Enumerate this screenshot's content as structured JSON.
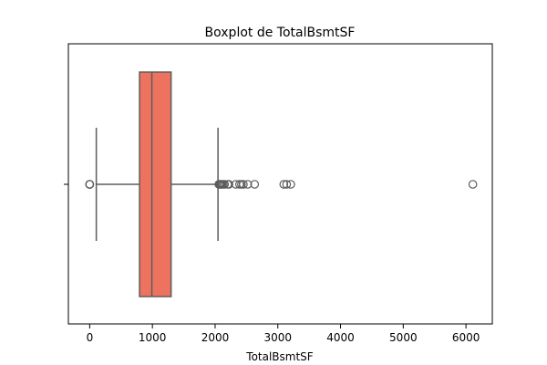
{
  "chart_data": {
    "type": "boxplot",
    "title": "Boxplot de TotalBsmtSF",
    "xlabel": "TotalBsmtSF",
    "ylabel": "",
    "orientation": "horizontal",
    "xlim": [
      -340,
      6420
    ],
    "xticks": [
      0,
      1000,
      2000,
      3000,
      4000,
      5000,
      6000
    ],
    "grid": false,
    "box": {
      "whisker_low": 105,
      "q1": 795,
      "median": 991,
      "q3": 1298,
      "whisker_high": 2046
    },
    "outliers": [
      0,
      0,
      0,
      0,
      2060,
      2075,
      2090,
      2110,
      2130,
      2150,
      2200,
      2220,
      2330,
      2390,
      2420,
      2450,
      2520,
      2630,
      3095,
      3140,
      3206,
      6110
    ],
    "colors": {
      "box_fill": "#ee735e",
      "line": "#5c5c5c",
      "axes": "#000000"
    }
  }
}
